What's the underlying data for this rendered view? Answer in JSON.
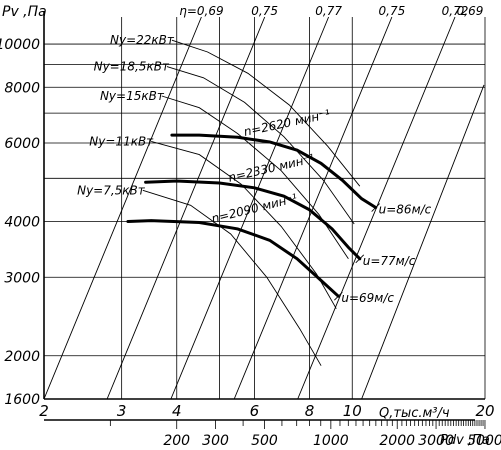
{
  "chart_data": {
    "type": "line",
    "title": "",
    "ylabel": "Pv ,Па",
    "xlabel": "Q,тыс.м³/ч",
    "x2label": "Pdv ,Па",
    "x_scale": "log",
    "y_scale": "log",
    "xlim": [
      2,
      20
    ],
    "ylim": [
      1600,
      11500
    ],
    "x_ticks": [
      2,
      3,
      4,
      5,
      6,
      8,
      10,
      20
    ],
    "x_tick_labels": [
      "2",
      "3",
      "4",
      "",
      "6",
      "8",
      "10",
      "20"
    ],
    "y_ticks": [
      1600,
      2000,
      3000,
      4000,
      6000,
      8000,
      10000
    ],
    "y_tick_labels": [
      "1600",
      "2000",
      "3000",
      "4000",
      "6000",
      "8000",
      "10000"
    ],
    "x2_ticks": [
      200,
      300,
      500,
      1000,
      2000,
      3000,
      5000
    ],
    "x2_tick_labels": [
      "200",
      "300",
      "500",
      "1000",
      "2000",
      "3000",
      "5000"
    ],
    "grid": true,
    "efficiency_lines": [
      {
        "label": "η=0,69",
        "points": [
          [
            2.0,
            1600
          ],
          [
            4.55,
            11500
          ]
        ]
      },
      {
        "label": "0,75",
        "points": [
          [
            2.78,
            1600
          ],
          [
            6.33,
            11500
          ]
        ]
      },
      {
        "label": "0,77",
        "points": [
          [
            3.88,
            1600
          ],
          [
            8.84,
            11500
          ]
        ]
      },
      {
        "label": "0,75",
        "points": [
          [
            5.4,
            1600
          ],
          [
            12.3,
            11500
          ]
        ]
      },
      {
        "label": "0,72",
        "points": [
          [
            7.52,
            1600
          ],
          [
            17.1,
            11500
          ]
        ]
      },
      {
        "label": "0,69",
        "points": [
          [
            10.5,
            1600
          ],
          [
            19.9,
            8100
          ]
        ]
      }
    ],
    "power_curves": [
      {
        "label": "Nу=22кВт",
        "points": [
          [
            3.9,
            10200
          ],
          [
            4.7,
            9600
          ],
          [
            5.8,
            8600
          ],
          [
            7.2,
            7300
          ],
          [
            8.8,
            5900
          ],
          [
            10.4,
            4800
          ]
        ]
      },
      {
        "label": "Nу=18,5кВт",
        "points": [
          [
            3.8,
            8900
          ],
          [
            4.6,
            8400
          ],
          [
            5.7,
            7400
          ],
          [
            7.0,
            6200
          ],
          [
            8.6,
            4950
          ],
          [
            10.1,
            3950
          ]
        ]
      },
      {
        "label": "Nу=15кВт",
        "points": [
          [
            3.7,
            7650
          ],
          [
            4.5,
            7200
          ],
          [
            5.5,
            6300
          ],
          [
            6.9,
            5200
          ],
          [
            8.4,
            4150
          ],
          [
            9.8,
            3300
          ]
        ]
      },
      {
        "label": "Nу=11кВт",
        "points": [
          [
            3.5,
            6050
          ],
          [
            4.5,
            5650
          ],
          [
            5.6,
            4850
          ],
          [
            6.9,
            3900
          ],
          [
            8.3,
            3050
          ],
          [
            9.2,
            2550
          ]
        ]
      },
      {
        "label": "Nу=7,5кВт",
        "points": [
          [
            3.35,
            4700
          ],
          [
            4.3,
            4350
          ],
          [
            5.3,
            3750
          ],
          [
            6.4,
            3000
          ],
          [
            7.6,
            2300
          ],
          [
            8.5,
            1900
          ]
        ]
      }
    ],
    "speed_curves": [
      {
        "label": "n=2620 мин⁻¹",
        "points": [
          [
            3.9,
            6250
          ],
          [
            4.5,
            6250
          ],
          [
            5.5,
            6180
          ],
          [
            6.5,
            6030
          ],
          [
            7.5,
            5780
          ],
          [
            8.5,
            5400
          ],
          [
            9.5,
            4950
          ],
          [
            10.5,
            4500
          ],
          [
            11.3,
            4300
          ]
        ]
      },
      {
        "label": "n=2330 мин⁻¹",
        "points": [
          [
            3.4,
            4900
          ],
          [
            4.0,
            4930
          ],
          [
            5.0,
            4880
          ],
          [
            6.0,
            4760
          ],
          [
            7.0,
            4560
          ],
          [
            8.0,
            4250
          ],
          [
            9.0,
            3850
          ],
          [
            9.8,
            3500
          ],
          [
            10.4,
            3300
          ]
        ]
      },
      {
        "label": "n=2090 мин⁻¹",
        "points": [
          [
            3.1,
            4000
          ],
          [
            3.5,
            4020
          ],
          [
            4.5,
            3980
          ],
          [
            5.5,
            3850
          ],
          [
            6.5,
            3630
          ],
          [
            7.5,
            3300
          ],
          [
            8.5,
            2950
          ],
          [
            9.3,
            2720
          ]
        ]
      }
    ],
    "speed_markers": [
      {
        "label": "u=86м/с",
        "x": 11.3,
        "y": 4300
      },
      {
        "label": "u=77м/с",
        "x": 10.4,
        "y": 3300
      },
      {
        "label": "u=69м/с",
        "x": 9.3,
        "y": 2720
      }
    ]
  }
}
